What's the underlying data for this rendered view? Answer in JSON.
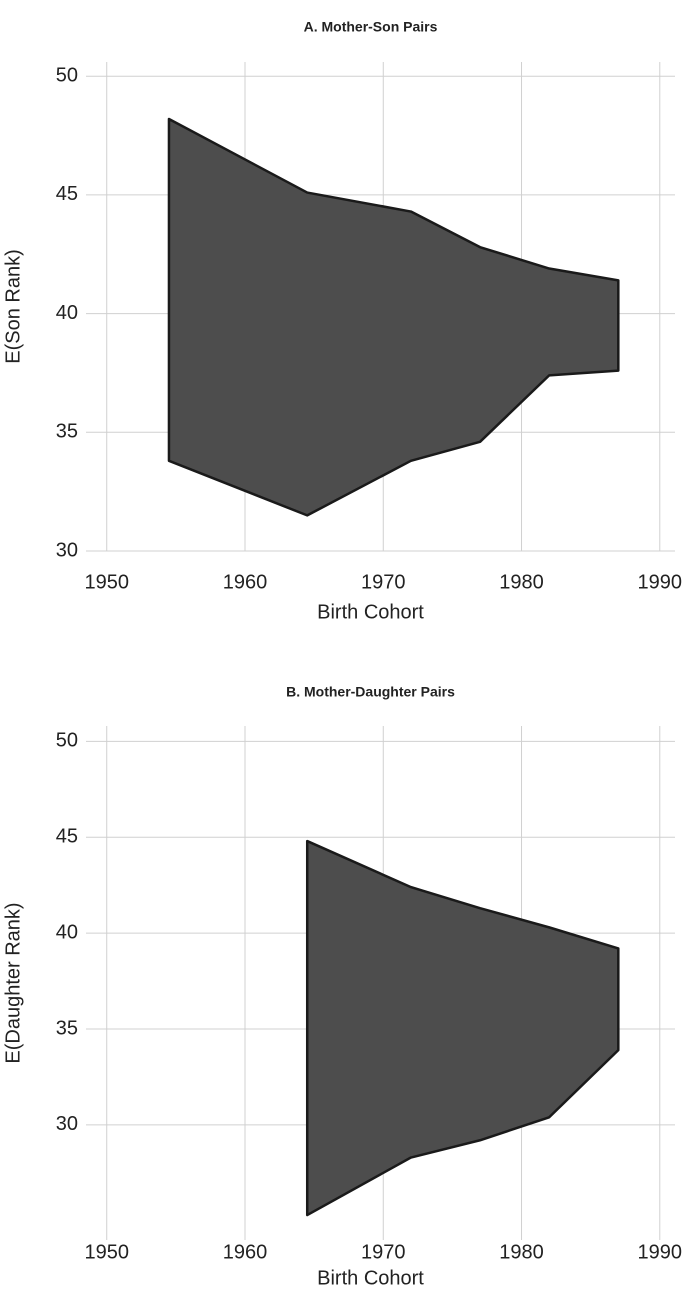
{
  "chart_data": [
    {
      "type": "band",
      "title": "A. Mother-Son Pairs",
      "x_label": "Birth Cohort",
      "y_label": "E(Son Rank)",
      "x": [
        1954.5,
        1964.5,
        1972,
        1977,
        1982,
        1987
      ],
      "high": [
        48.2,
        45.1,
        44.3,
        42.8,
        41.9,
        41.4
      ],
      "low": [
        33.8,
        31.5,
        33.8,
        34.6,
        37.4,
        37.6
      ],
      "color": "#4d4d4d",
      "xlim": [
        1948.5,
        1991.1
      ],
      "xticks": [
        1950,
        1960,
        1970,
        1980,
        1990
      ],
      "ylim": [
        30,
        50.6
      ],
      "yticks": [
        30,
        35,
        40,
        45,
        50
      ],
      "grid": true
    },
    {
      "type": "band",
      "title": "B. Mother-Daughter Pairs",
      "x_label": "Birth Cohort",
      "y_label": "E(Daughter Rank)",
      "x": [
        1964.5,
        1972,
        1977,
        1982,
        1987
      ],
      "high": [
        44.8,
        42.4,
        41.3,
        40.3,
        39.2
      ],
      "low": [
        25.3,
        28.3,
        29.2,
        30.4,
        33.9
      ],
      "color": "#4d4d4d",
      "xlim": [
        1948.5,
        1991.1
      ],
      "xticks": [
        1950,
        1960,
        1970,
        1980,
        1990
      ],
      "ylim": [
        24,
        50.8
      ],
      "yticks": [
        30,
        35,
        40,
        45,
        50
      ],
      "grid": true
    }
  ]
}
